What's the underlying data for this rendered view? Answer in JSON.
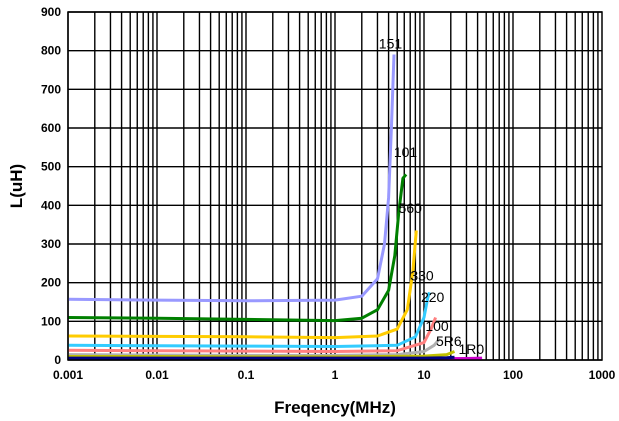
{
  "chart_data": {
    "type": "line",
    "xscale": "log",
    "xlabel": "Freqency(MHz)",
    "ylabel": "L(uH)",
    "xlim": [
      0.001,
      1000
    ],
    "ylim": [
      0,
      900
    ],
    "grid": true,
    "x_ticks": [
      {
        "value": 0.001,
        "label": "0.001"
      },
      {
        "value": 0.01,
        "label": "0.01"
      },
      {
        "value": 0.1,
        "label": "0.1"
      },
      {
        "value": 1,
        "label": "1"
      },
      {
        "value": 10,
        "label": "10"
      },
      {
        "value": 100,
        "label": "100"
      },
      {
        "value": 1000,
        "label": "1000"
      }
    ],
    "y_ticks": [
      {
        "value": 0,
        "label": "0"
      },
      {
        "value": 100,
        "label": "100"
      },
      {
        "value": 200,
        "label": "200"
      },
      {
        "value": 300,
        "label": "300"
      },
      {
        "value": 400,
        "label": "400"
      },
      {
        "value": 500,
        "label": "500"
      },
      {
        "value": 600,
        "label": "600"
      },
      {
        "value": 700,
        "label": "700"
      },
      {
        "value": 800,
        "label": "800"
      },
      {
        "value": 900,
        "label": "900"
      }
    ],
    "series": [
      {
        "name": "151",
        "color": "#9999ff",
        "label_at": {
          "x": 4.2,
          "y": 805
        },
        "points": [
          [
            0.001,
            157
          ],
          [
            0.01,
            155
          ],
          [
            0.1,
            153
          ],
          [
            1,
            155
          ],
          [
            2,
            165
          ],
          [
            3,
            210
          ],
          [
            3.6,
            300
          ],
          [
            4,
            420
          ],
          [
            4.3,
            600
          ],
          [
            4.6,
            790
          ]
        ]
      },
      {
        "name": "101",
        "color": "#008000",
        "label_at": {
          "x": 6.2,
          "y": 525
        },
        "points": [
          [
            0.001,
            110
          ],
          [
            0.01,
            108
          ],
          [
            0.1,
            105
          ],
          [
            1,
            102
          ],
          [
            2,
            108
          ],
          [
            3,
            130
          ],
          [
            4,
            180
          ],
          [
            4.7,
            270
          ],
          [
            5.2,
            380
          ],
          [
            5.8,
            470
          ],
          [
            6.3,
            480
          ]
        ]
      },
      {
        "name": "560",
        "color": "#ffcc00",
        "label_at": {
          "x": 7.0,
          "y": 380
        },
        "points": [
          [
            0.001,
            62
          ],
          [
            0.01,
            61
          ],
          [
            0.1,
            60
          ],
          [
            1,
            58
          ],
          [
            3,
            62
          ],
          [
            5,
            80
          ],
          [
            6.5,
            130
          ],
          [
            7.5,
            230
          ],
          [
            8.2,
            335
          ]
        ]
      },
      {
        "name": "330",
        "color": "#33ccff",
        "label_at": {
          "x": 9.5,
          "y": 205
        },
        "points": [
          [
            0.001,
            38
          ],
          [
            0.01,
            37
          ],
          [
            0.1,
            36
          ],
          [
            1,
            35
          ],
          [
            5,
            38
          ],
          [
            8,
            60
          ],
          [
            10,
            110
          ],
          [
            11,
            160
          ],
          [
            11.5,
            175
          ]
        ]
      },
      {
        "name": "220",
        "color": "#ff8080",
        "label_at": {
          "x": 12.5,
          "y": 150
        },
        "points": [
          [
            0.001,
            25
          ],
          [
            0.01,
            24
          ],
          [
            0.1,
            23
          ],
          [
            1,
            22
          ],
          [
            5,
            24
          ],
          [
            10,
            45
          ],
          [
            12,
            80
          ],
          [
            13.5,
            110
          ]
        ]
      },
      {
        "name": "100",
        "color": "#b0b0b0",
        "label_at": {
          "x": 14.0,
          "y": 75
        },
        "points": [
          [
            0.001,
            14
          ],
          [
            0.01,
            13
          ],
          [
            0.1,
            12
          ],
          [
            1,
            12
          ],
          [
            5,
            14
          ],
          [
            10,
            22
          ],
          [
            13,
            38
          ],
          [
            15,
            55
          ]
        ]
      },
      {
        "name": "5R6",
        "color": "#c0c000",
        "label_at": {
          "x": 19.0,
          "y": 36
        },
        "points": [
          [
            0.001,
            9
          ],
          [
            0.01,
            9
          ],
          [
            0.1,
            8
          ],
          [
            1,
            8
          ],
          [
            10,
            10
          ],
          [
            18,
            14
          ],
          [
            22,
            22
          ]
        ]
      },
      {
        "name": "1R0",
        "color": "#cc00cc",
        "label_at": {
          "x": 34.0,
          "y": 16
        },
        "points": [
          [
            0.001,
            3
          ],
          [
            0.1,
            3
          ],
          [
            1,
            3
          ],
          [
            10,
            3
          ],
          [
            30,
            4
          ],
          [
            45,
            5
          ]
        ]
      },
      {
        "name": "",
        "color": "#000080",
        "points": [
          [
            0.001,
            5
          ],
          [
            0.1,
            5
          ],
          [
            1,
            5
          ],
          [
            10,
            5
          ],
          [
            18,
            6
          ],
          [
            22,
            7
          ]
        ]
      }
    ]
  }
}
